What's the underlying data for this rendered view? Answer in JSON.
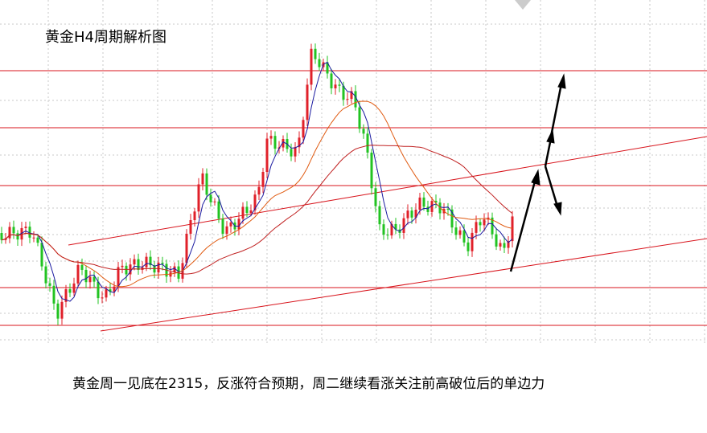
{
  "header": {
    "title": "黄金H4周期解析图"
  },
  "caption": "黄金周一见底在2315，反涨符合预期，周二继续看涨关注前高破位后的单边力"
}
